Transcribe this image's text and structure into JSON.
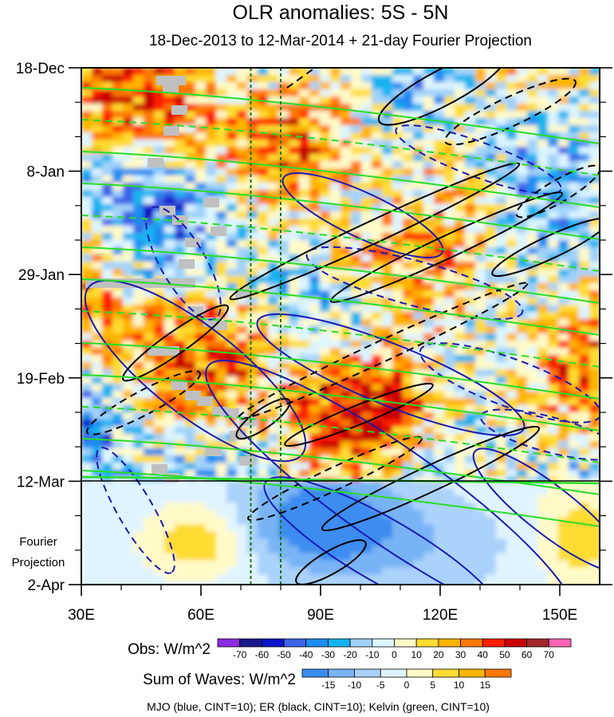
{
  "chart_data": {
    "type": "heatmap",
    "title": "OLR anomalies: 5S - 5N",
    "subtitle": "18-Dec-2013 to 12-Mar-2014 + 21-day Fourier Projection",
    "x_axis": {
      "range": [
        30,
        160
      ],
      "tick_values": [
        30,
        60,
        90,
        120,
        150
      ],
      "tick_labels": [
        "30E",
        "60E",
        "90E",
        "120E",
        "150E"
      ]
    },
    "y_axis": {
      "range": [
        "2013-12-18",
        "2014-04-02"
      ],
      "tick_values": [
        "2013-12-18",
        "2014-01-08",
        "2014-01-29",
        "2014-02-19",
        "2014-03-12",
        "2014-04-02"
      ],
      "tick_labels": [
        "18-Dec",
        "8-Jan",
        "29-Jan",
        "19-Feb",
        "12-Mar",
        "2-Apr"
      ],
      "direction": "time increases downward"
    },
    "projection_label": [
      "Fourier",
      "Projection"
    ],
    "projection_start": "2014-03-12",
    "reference_longitudes": [
      72.5,
      80
    ],
    "obs_colorbar": {
      "label": "Obs: W/m^2",
      "levels": [
        "-70",
        "-60",
        "-50",
        "-40",
        "-30",
        "-20",
        "-10",
        "0",
        "10",
        "20",
        "30",
        "40",
        "50",
        "60",
        "70"
      ],
      "colors": [
        "#8b2be2",
        "#19198c",
        "#0a14c8",
        "#3c64e6",
        "#1e8cf0",
        "#14b4f0",
        "#a0d2fa",
        "#dcf5ff",
        "#fffac8",
        "#ffdc32",
        "#ffb400",
        "#ff7800",
        "#ff1e00",
        "#c80000",
        "#a02828",
        "#ff64b4"
      ]
    },
    "waves_colorbar": {
      "label": "Sum of Waves: W/m^2",
      "levels": [
        "-15",
        "-10",
        "-5",
        "0",
        "5",
        "10",
        "15"
      ],
      "colors": [
        "#3c8cf0",
        "#78b4f5",
        "#aad2fa",
        "#e0f4ff",
        "#fffac8",
        "#ffdc32",
        "#ffb400",
        "#ff7800"
      ]
    },
    "contour_legend": "MJO (blue, CINT=10); ER (black, CINT=10); Kelvin (green, CINT=10)",
    "wave_colors": {
      "mjo": "#1a1ab4",
      "er": "#000000",
      "kelvin": "#28dc28"
    },
    "missing_data_color": "#c0c0c0"
  }
}
